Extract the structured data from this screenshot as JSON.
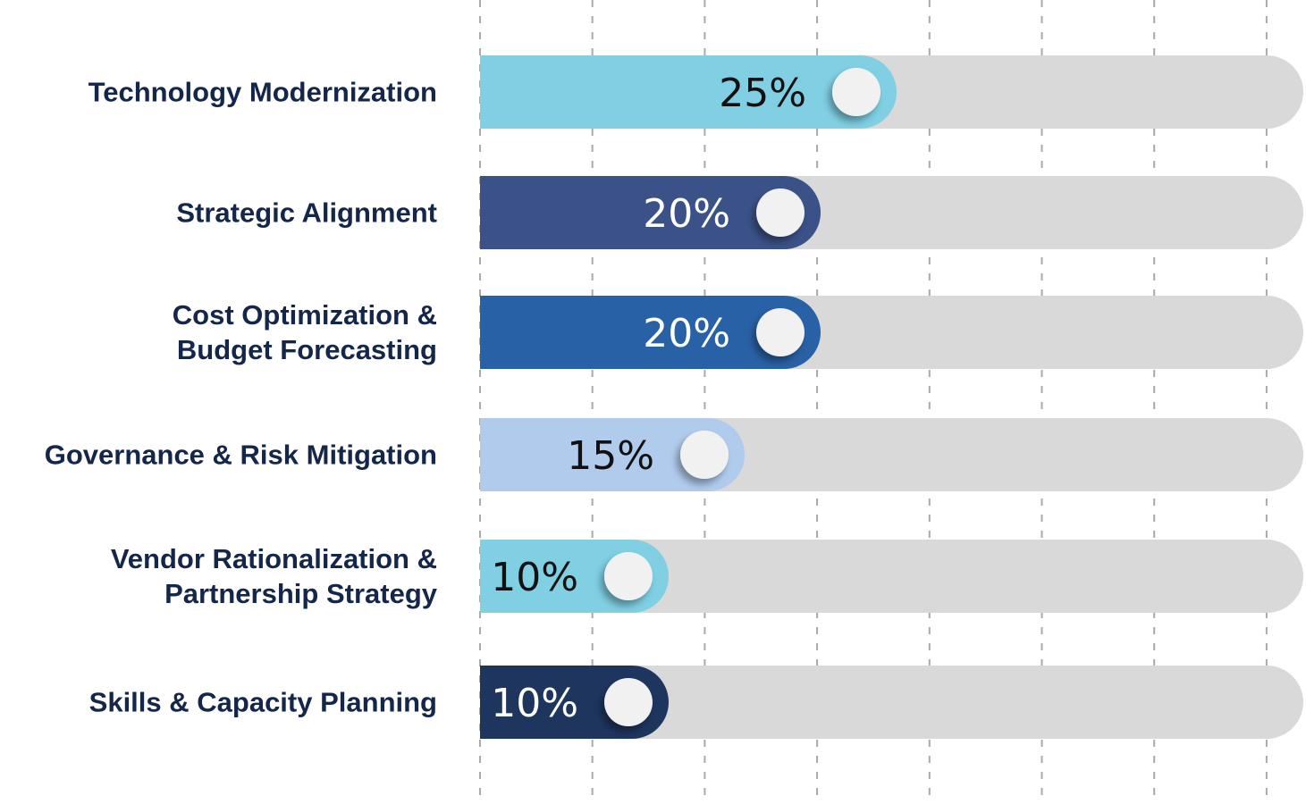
{
  "chart_data": {
    "type": "bar",
    "orientation": "horizontal",
    "categories": [
      "Technology Modernization",
      "Strategic Alignment",
      "Cost Optimization &\nBudget Forecasting",
      "Governance & Risk Mitigation",
      "Vendor Rationalization &\nPartnership Strategy",
      "Skills & Capacity Planning"
    ],
    "values": [
      25,
      20,
      20,
      15,
      10,
      10
    ],
    "value_labels": [
      "25%",
      "20%",
      "20%",
      "15%",
      "10%",
      "10%"
    ],
    "colors": [
      "#80cfe3",
      "#3a5288",
      "#2961a6",
      "#b0cbec",
      "#80cfe3",
      "#1e355e"
    ],
    "label_colors": [
      "#111111",
      "#ffffff",
      "#ffffff",
      "#111111",
      "#111111",
      "#ffffff"
    ],
    "track_color": "#d9d9d9",
    "grid": true,
    "grid_style": "dashed vertical",
    "legend": "none"
  }
}
